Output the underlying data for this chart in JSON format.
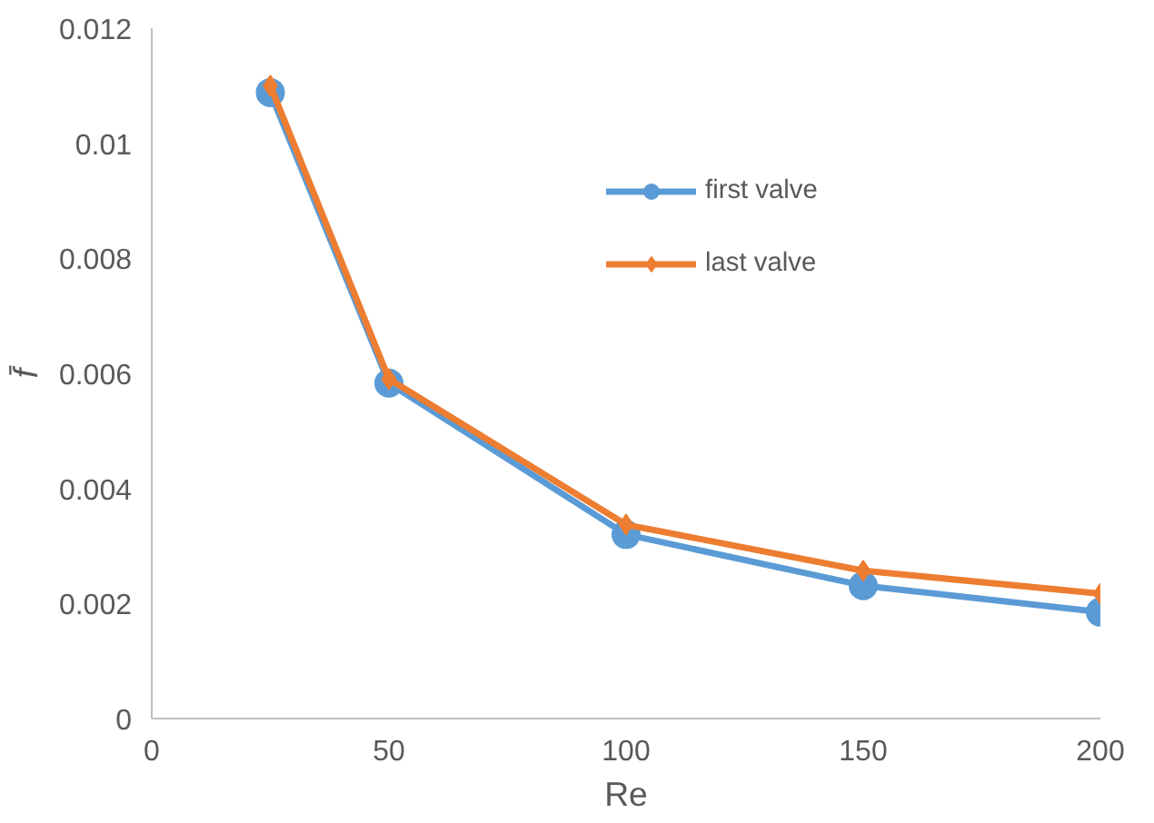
{
  "chart_data": {
    "type": "line",
    "xlabel": "Re",
    "ylabel": "f̄",
    "x": [
      25,
      50,
      100,
      150,
      200
    ],
    "series": [
      {
        "name": "first valve",
        "color": "#5b9bd5",
        "marker": "circle",
        "values": [
          0.01088,
          0.00583,
          0.0032,
          0.00231,
          0.00185
        ]
      },
      {
        "name": "last valve",
        "color": "#ed7d31",
        "marker": "diamond",
        "values": [
          0.011,
          0.0059,
          0.00337,
          0.00257,
          0.00217
        ]
      }
    ],
    "xlim": [
      0,
      200
    ],
    "xticks": [
      0,
      50,
      100,
      150,
      200
    ],
    "ylim": [
      0,
      0.012
    ],
    "yticks": [
      0,
      0.002,
      0.004,
      0.006,
      0.008,
      0.01,
      0.012
    ],
    "grid": false,
    "legend": "right"
  }
}
